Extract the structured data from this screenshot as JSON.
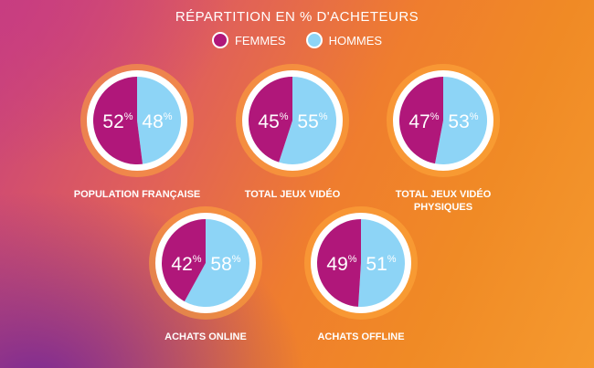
{
  "title": "RÉPARTITION EN % D'ACHETEURS",
  "legend": [
    {
      "label": "FEMMES",
      "color": "#b0177a"
    },
    {
      "label": "HOMMES",
      "color": "#8dd4f6"
    }
  ],
  "colors": {
    "femmes": "#b0177a",
    "hommes": "#8dd4f6",
    "ring": "#ffffff"
  },
  "chart_data": [
    {
      "type": "pie",
      "title": "POPULATION FRANÇAISE",
      "label_lines": [
        "POPULATION FRANÇAISE"
      ],
      "categories": [
        "FEMMES",
        "HOMMES"
      ],
      "values": [
        52,
        48
      ]
    },
    {
      "type": "pie",
      "title": "TOTAL JEUX VIDÉO",
      "label_lines": [
        "TOTAL JEUX VIDÉO"
      ],
      "categories": [
        "FEMMES",
        "HOMMES"
      ],
      "values": [
        45,
        55
      ]
    },
    {
      "type": "pie",
      "title": "TOTAL JEUX VIDÉO PHYSIQUES",
      "label_lines": [
        "TOTAL JEUX VIDÉO",
        "PHYSIQUES"
      ],
      "categories": [
        "FEMMES",
        "HOMMES"
      ],
      "values": [
        47,
        53
      ]
    },
    {
      "type": "pie",
      "title": "ACHATS ONLINE",
      "label_lines": [
        "ACHATS ONLINE"
      ],
      "categories": [
        "FEMMES",
        "HOMMES"
      ],
      "values": [
        42,
        58
      ]
    },
    {
      "type": "pie",
      "title": "ACHATS OFFLINE",
      "label_lines": [
        "ACHATS OFFLINE"
      ],
      "categories": [
        "FEMMES",
        "HOMMES"
      ],
      "values": [
        49,
        51
      ]
    }
  ]
}
